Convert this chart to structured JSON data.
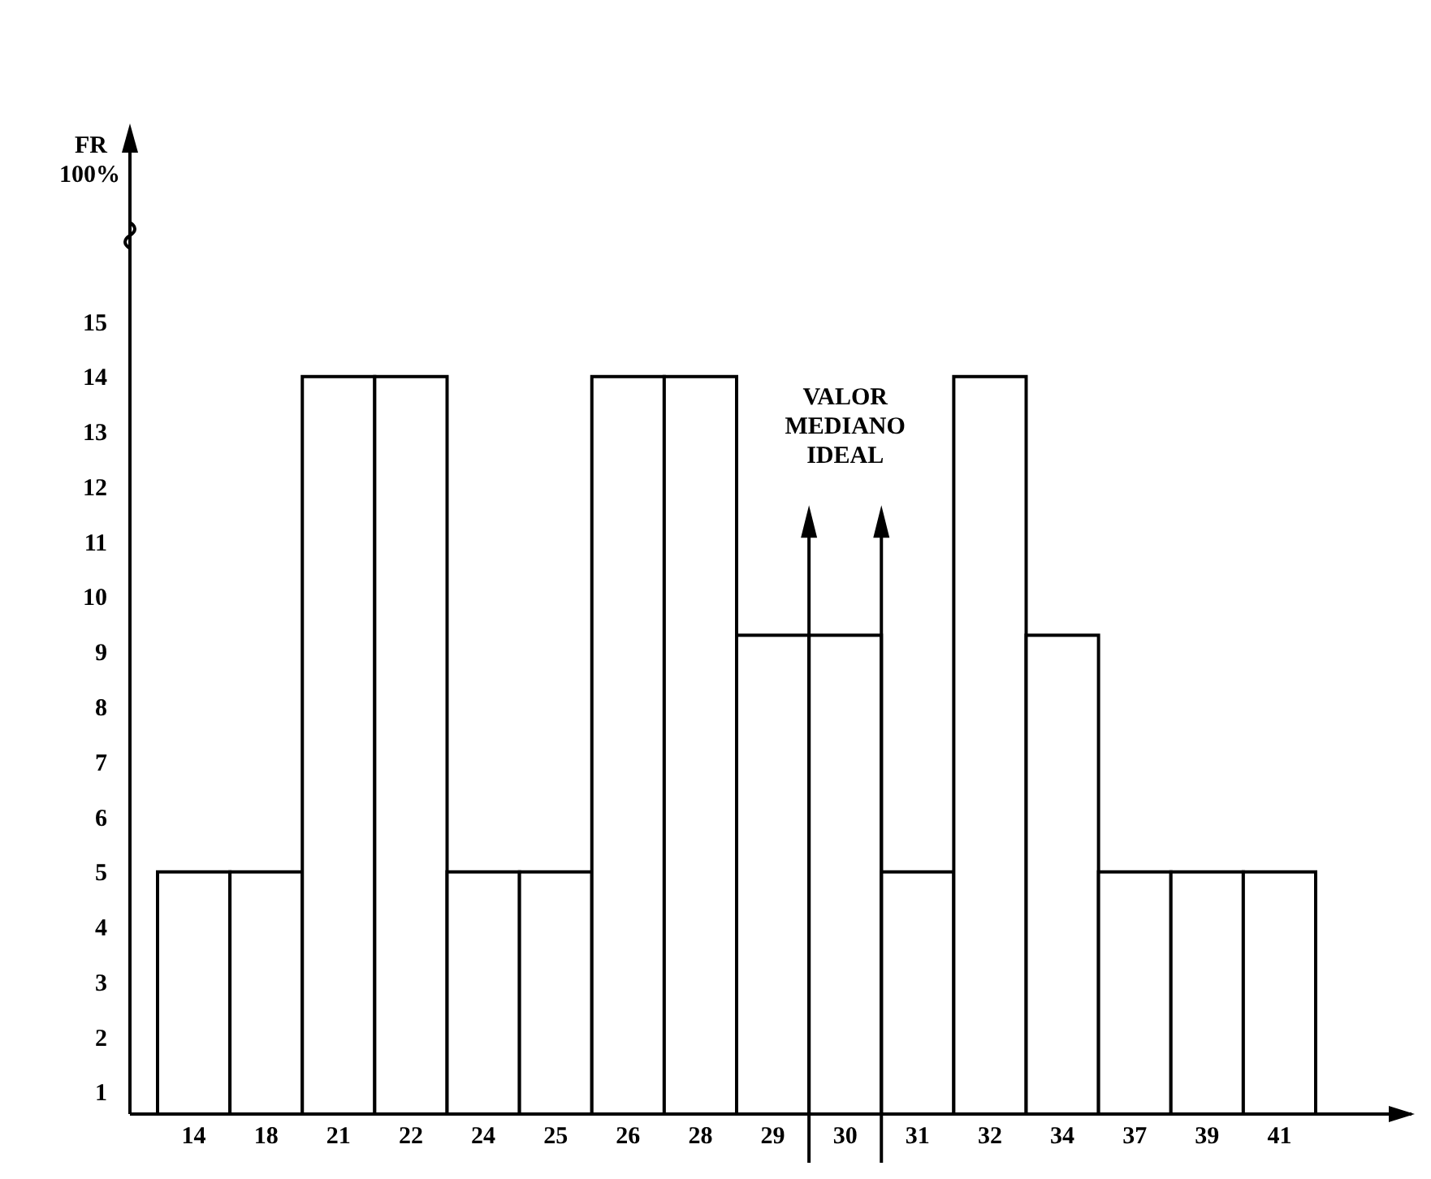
{
  "chart_data": {
    "type": "bar",
    "categories": [
      "14",
      "18",
      "21",
      "22",
      "24",
      "25",
      "26",
      "28",
      "29",
      "30",
      "31",
      "32",
      "34",
      "37",
      "39",
      "41"
    ],
    "values": [
      5,
      5,
      14,
      14,
      5,
      5,
      14,
      14,
      9.3,
      9.3,
      5,
      14,
      9.3,
      5,
      5,
      5
    ],
    "color": "#ffffff",
    "ylim": [
      0.6,
      15
    ],
    "yticks": [
      1,
      2,
      3,
      4,
      5,
      6,
      7,
      8,
      9,
      10,
      11,
      12,
      13,
      14,
      15
    ],
    "annotations": [
      "FR\n100%",
      "VALOR\nMEDIANO\nIDEAL"
    ],
    "grid": false
  }
}
